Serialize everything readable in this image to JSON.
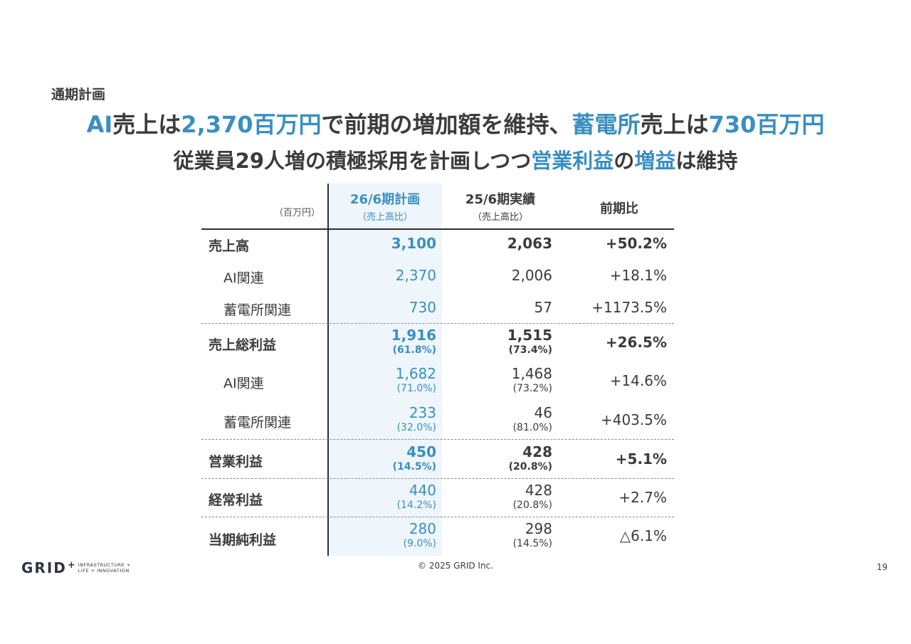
{
  "slide_label": "通期計画",
  "headline1": {
    "p1": "AI",
    "p2": "売上は",
    "p3": "2,370百万円",
    "p4": "で前期の増加額を維持、",
    "p5": "蓄電所",
    "p6": "売上は",
    "p7": "730百万円"
  },
  "headline2": {
    "p1": "従業員29人増の積極採用を計画しつつ",
    "p2": "営業利益",
    "p3": "の",
    "p4": "増益",
    "p5": "は維持"
  },
  "unit": "（百万円）",
  "columns": {
    "plan": {
      "title": "26/6期計画",
      "sub": "（売上高比）"
    },
    "prev": {
      "title": "25/6期実績",
      "sub": "（売上高比）"
    },
    "yoy": {
      "title": "前期比"
    }
  },
  "rows": [
    {
      "label": "売上高",
      "plan": "3,100",
      "prev": "2,063",
      "yoy": "+50.2%"
    },
    {
      "label": "AI関連",
      "plan": "2,370",
      "prev": "2,006",
      "yoy": "+18.1%"
    },
    {
      "label": "蓄電所関連",
      "plan": "730",
      "prev": "57",
      "yoy": "+1173.5%"
    },
    {
      "label": "売上総利益",
      "plan": "1,916",
      "plan_pct": "(61.8%)",
      "prev": "1,515",
      "prev_pct": "(73.4%)",
      "yoy": "+26.5%"
    },
    {
      "label": "AI関連",
      "plan": "1,682",
      "plan_pct": "(71.0%)",
      "prev": "1,468",
      "prev_pct": "(73.2%)",
      "yoy": "+14.6%"
    },
    {
      "label": "蓄電所関連",
      "plan": "233",
      "plan_pct": "(32.0%)",
      "prev": "46",
      "prev_pct": "(81.0%)",
      "yoy": "+403.5%"
    },
    {
      "label": "営業利益",
      "plan": "450",
      "plan_pct": "(14.5%)",
      "prev": "428",
      "prev_pct": "(20.8%)",
      "yoy": "+5.1%"
    },
    {
      "label": "経常利益",
      "plan": "440",
      "plan_pct": "(14.2%)",
      "prev": "428",
      "prev_pct": "(20.8%)",
      "yoy": "+2.7%"
    },
    {
      "label": "当期純利益",
      "plan": "280",
      "plan_pct": "(9.0%)",
      "prev": "298",
      "prev_pct": "(14.5%)",
      "yoy": "△6.1%"
    }
  ],
  "footer": {
    "logo_word": "GRID",
    "logo_plus": "+",
    "logo_tag1": "INFRASTRUCTURE +",
    "logo_tag2": "LIFE + INNOVATION",
    "copyright": "© 2025 GRID Inc.",
    "page": "19"
  },
  "colors": {
    "accent": "#3a8fc0",
    "text": "#3b3b3b",
    "plan_bg": "#eef6fb"
  }
}
